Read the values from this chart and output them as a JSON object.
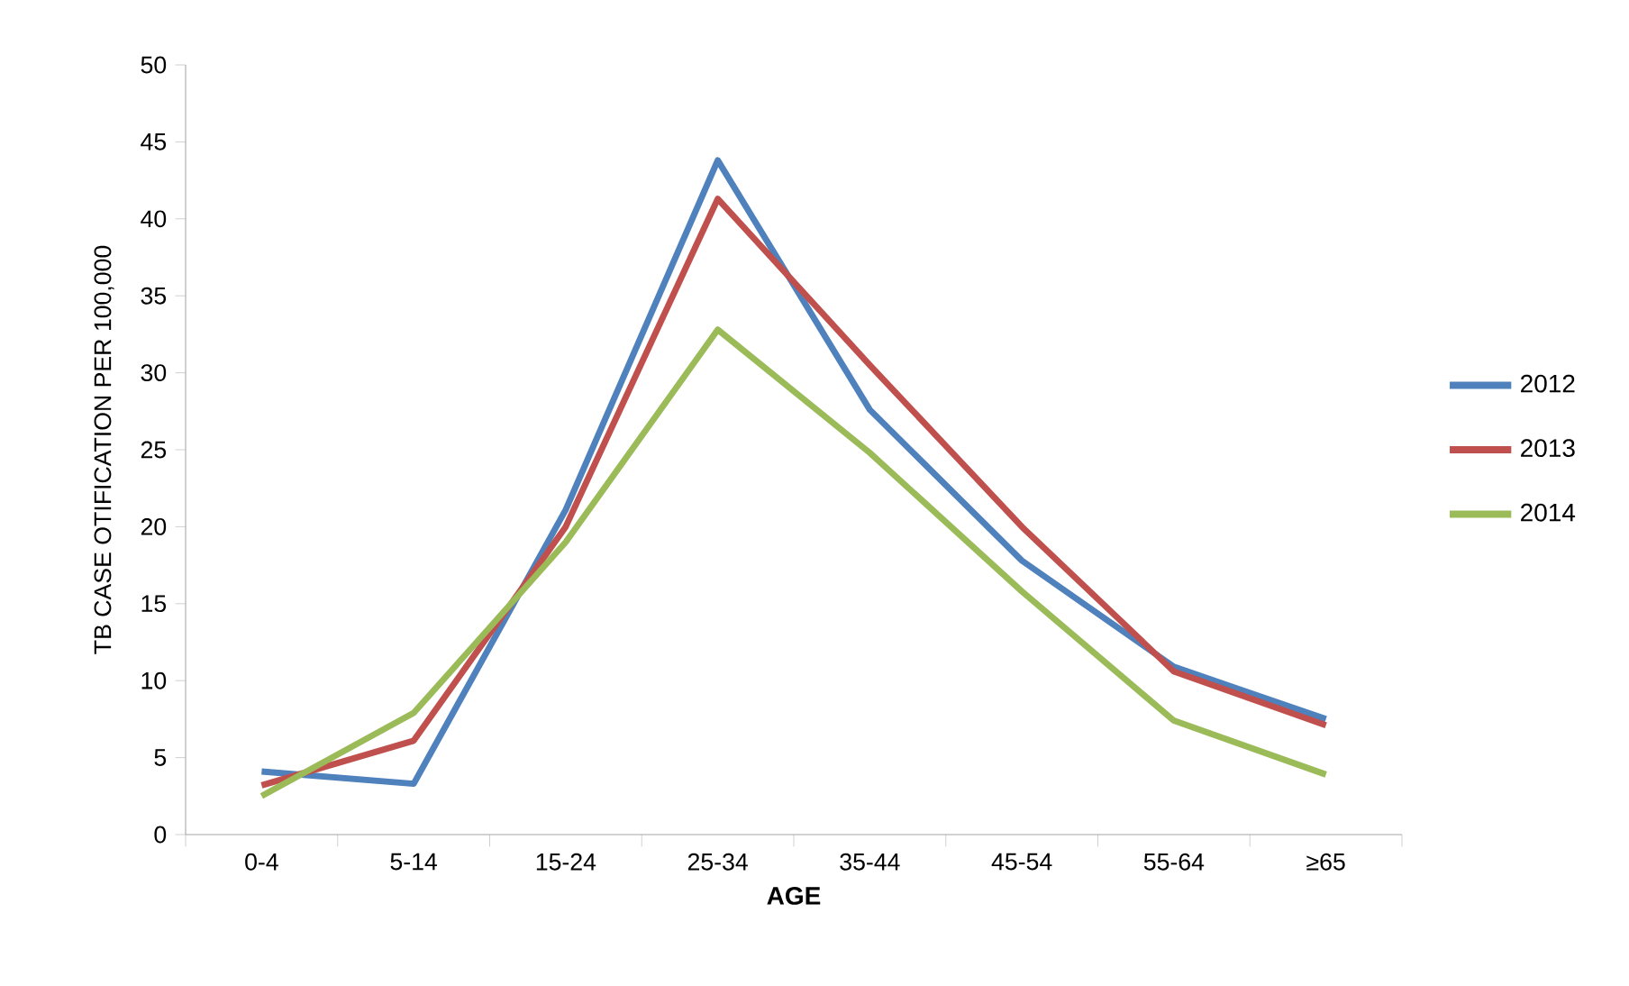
{
  "chart_data": {
    "type": "line",
    "xlabel": "AGE",
    "ylabel": "TB CASE OTIFICATION PER 100,000",
    "categories": [
      "0-4",
      "5-14",
      "15-24",
      "25-34",
      "35-44",
      "45-54",
      "55-64",
      "≥65"
    ],
    "series": [
      {
        "name": "2012",
        "color": "#4f81bd",
        "values": [
          4.1,
          3.3,
          21.1,
          43.8,
          27.6,
          17.8,
          10.9,
          7.5
        ]
      },
      {
        "name": "2013",
        "color": "#c0504d",
        "values": [
          3.2,
          6.1,
          20.0,
          41.3,
          30.5,
          20.0,
          10.6,
          7.1
        ]
      },
      {
        "name": "2014",
        "color": "#9bbb59",
        "values": [
          2.5,
          7.9,
          19.0,
          32.8,
          24.8,
          15.8,
          7.4,
          3.9
        ]
      }
    ],
    "ylim": [
      0,
      50
    ],
    "yticks": [
      0,
      5,
      10,
      15,
      20,
      25,
      30,
      35,
      40,
      45,
      50
    ],
    "legend": "right",
    "marker": "none",
    "line_style": "solid",
    "grid": false
  }
}
